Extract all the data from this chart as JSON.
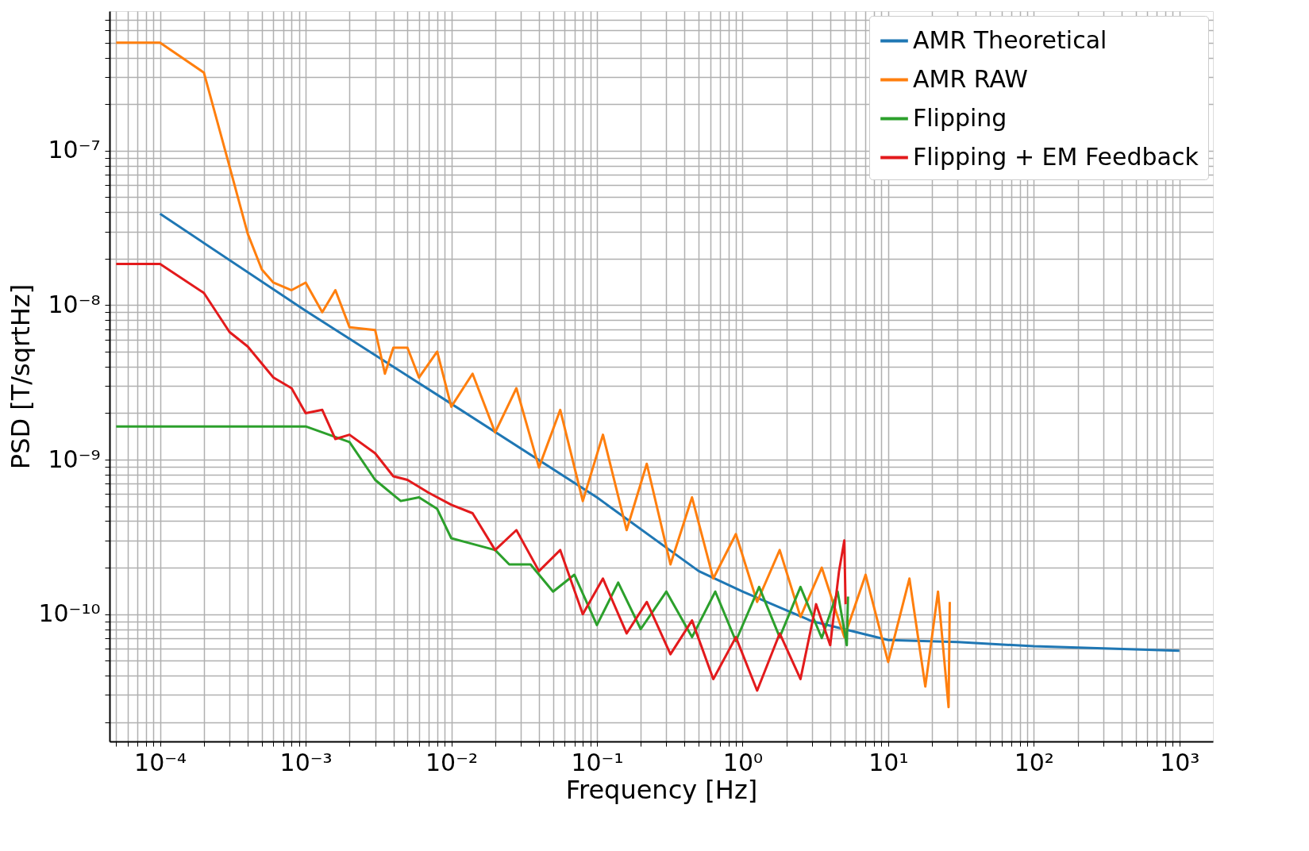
{
  "chart_data": {
    "type": "line",
    "xlabel": "Frequency [Hz]",
    "ylabel": "PSD [T/sqrtHz]",
    "log": "xy",
    "grid": true,
    "legend": "top right",
    "line_style": "solid",
    "marker": "none",
    "xlim": [
      4.5e-05,
      1700
    ],
    "ylim": [
      1.5e-11,
      8e-07
    ],
    "xticks": [
      {
        "value": 5e-05,
        "label": null
      },
      {
        "value": 6e-05,
        "label": null
      },
      {
        "value": 7e-05,
        "label": null
      },
      {
        "value": 8e-05,
        "label": null
      },
      {
        "value": 9e-05,
        "label": null
      },
      {
        "value": 0.0001,
        "label": "10⁻⁴"
      },
      {
        "value": 0.0002,
        "label": null
      },
      {
        "value": 0.0003,
        "label": null
      },
      {
        "value": 0.0004,
        "label": null
      },
      {
        "value": 0.0005,
        "label": null
      },
      {
        "value": 0.0006,
        "label": null
      },
      {
        "value": 0.0007,
        "label": null
      },
      {
        "value": 0.0008,
        "label": null
      },
      {
        "value": 0.0009,
        "label": null
      },
      {
        "value": 0.001,
        "label": "10⁻³"
      },
      {
        "value": 0.002,
        "label": null
      },
      {
        "value": 0.003,
        "label": null
      },
      {
        "value": 0.004,
        "label": null
      },
      {
        "value": 0.005,
        "label": null
      },
      {
        "value": 0.006,
        "label": null
      },
      {
        "value": 0.007,
        "label": null
      },
      {
        "value": 0.008,
        "label": null
      },
      {
        "value": 0.009,
        "label": null
      },
      {
        "value": 0.01,
        "label": "10⁻²"
      },
      {
        "value": 0.02,
        "label": null
      },
      {
        "value": 0.03,
        "label": null
      },
      {
        "value": 0.04,
        "label": null
      },
      {
        "value": 0.05,
        "label": null
      },
      {
        "value": 0.06,
        "label": null
      },
      {
        "value": 0.07,
        "label": null
      },
      {
        "value": 0.08,
        "label": null
      },
      {
        "value": 0.09,
        "label": null
      },
      {
        "value": 0.1,
        "label": "10⁻¹"
      },
      {
        "value": 0.2,
        "label": null
      },
      {
        "value": 0.3,
        "label": null
      },
      {
        "value": 0.4,
        "label": null
      },
      {
        "value": 0.5,
        "label": null
      },
      {
        "value": 0.6,
        "label": null
      },
      {
        "value": 0.7,
        "label": null
      },
      {
        "value": 0.8,
        "label": null
      },
      {
        "value": 0.9,
        "label": null
      },
      {
        "value": 1,
        "label": "10⁰"
      },
      {
        "value": 2,
        "label": null
      },
      {
        "value": 3,
        "label": null
      },
      {
        "value": 4,
        "label": null
      },
      {
        "value": 5,
        "label": null
      },
      {
        "value": 6,
        "label": null
      },
      {
        "value": 7,
        "label": null
      },
      {
        "value": 8,
        "label": null
      },
      {
        "value": 9,
        "label": null
      },
      {
        "value": 10,
        "label": "10¹"
      },
      {
        "value": 20,
        "label": null
      },
      {
        "value": 30,
        "label": null
      },
      {
        "value": 40,
        "label": null
      },
      {
        "value": 50,
        "label": null
      },
      {
        "value": 60,
        "label": null
      },
      {
        "value": 70,
        "label": null
      },
      {
        "value": 80,
        "label": null
      },
      {
        "value": 90,
        "label": null
      },
      {
        "value": 100,
        "label": "10²"
      },
      {
        "value": 200,
        "label": null
      },
      {
        "value": 300,
        "label": null
      },
      {
        "value": 400,
        "label": null
      },
      {
        "value": 500,
        "label": null
      },
      {
        "value": 600,
        "label": null
      },
      {
        "value": 700,
        "label": null
      },
      {
        "value": 800,
        "label": null
      },
      {
        "value": 900,
        "label": null
      },
      {
        "value": 1000,
        "label": "10³"
      }
    ],
    "yticks": [
      {
        "value": 2e-11,
        "label": null
      },
      {
        "value": 3e-11,
        "label": null
      },
      {
        "value": 4e-11,
        "label": null
      },
      {
        "value": 5e-11,
        "label": null
      },
      {
        "value": 6e-11,
        "label": null
      },
      {
        "value": 7e-11,
        "label": null
      },
      {
        "value": 8e-11,
        "label": null
      },
      {
        "value": 9e-11,
        "label": null
      },
      {
        "value": 1e-10,
        "label": "10⁻¹⁰"
      },
      {
        "value": 2e-10,
        "label": null
      },
      {
        "value": 3e-10,
        "label": null
      },
      {
        "value": 4e-10,
        "label": null
      },
      {
        "value": 5e-10,
        "label": null
      },
      {
        "value": 6e-10,
        "label": null
      },
      {
        "value": 7e-10,
        "label": null
      },
      {
        "value": 8e-10,
        "label": null
      },
      {
        "value": 9e-10,
        "label": null
      },
      {
        "value": 1e-09,
        "label": "10⁻⁹"
      },
      {
        "value": 2e-09,
        "label": null
      },
      {
        "value": 3e-09,
        "label": null
      },
      {
        "value": 4e-09,
        "label": null
      },
      {
        "value": 5e-09,
        "label": null
      },
      {
        "value": 6e-09,
        "label": null
      },
      {
        "value": 7e-09,
        "label": null
      },
      {
        "value": 8e-09,
        "label": null
      },
      {
        "value": 9e-09,
        "label": null
      },
      {
        "value": 1e-08,
        "label": "10⁻⁸"
      },
      {
        "value": 2e-08,
        "label": null
      },
      {
        "value": 3e-08,
        "label": null
      },
      {
        "value": 4e-08,
        "label": null
      },
      {
        "value": 5e-08,
        "label": null
      },
      {
        "value": 6e-08,
        "label": null
      },
      {
        "value": 7e-08,
        "label": null
      },
      {
        "value": 8e-08,
        "label": null
      },
      {
        "value": 9e-08,
        "label": null
      },
      {
        "value": 1e-07,
        "label": "10⁻⁷"
      },
      {
        "value": 2e-07,
        "label": null
      },
      {
        "value": 3e-07,
        "label": null
      },
      {
        "value": 4e-07,
        "label": null
      },
      {
        "value": 5e-07,
        "label": null
      },
      {
        "value": 6e-07,
        "label": null
      },
      {
        "value": 7e-07,
        "label": null
      }
    ],
    "series": [
      {
        "name": "AMR Theoretical",
        "color": "#1f77b4",
        "x": [
          0.0001,
          0.001,
          0.01,
          0.1,
          0.5,
          1,
          3,
          10,
          30,
          100,
          1000
        ],
        "values": [
          3.9e-08,
          9.2e-09,
          2.3e-09,
          5.7e-10,
          1.9e-10,
          1.4e-10,
          9e-11,
          6.8e-11,
          6.6e-11,
          6.2e-11,
          5.8e-11
        ]
      },
      {
        "name": "AMR RAW",
        "color": "#ff7f0e",
        "x": [
          5e-05,
          0.0001,
          0.0002,
          0.0003,
          0.0004,
          0.0005,
          0.0006,
          0.0008,
          0.001,
          0.0013,
          0.0016,
          0.002,
          0.003,
          0.0035,
          0.004,
          0.005,
          0.006,
          0.008,
          0.01,
          0.014,
          0.02,
          0.028,
          0.04,
          0.056,
          0.08,
          0.11,
          0.16,
          0.22,
          0.32,
          0.45,
          0.63,
          0.9,
          1.26,
          1.8,
          2.5,
          3.5,
          5,
          7,
          10,
          14,
          18,
          22,
          26,
          26.5
        ],
        "values": [
          5e-07,
          5e-07,
          3.2e-07,
          7.9e-08,
          2.9e-08,
          1.7e-08,
          1.4e-08,
          1.25e-08,
          1.4e-08,
          9e-09,
          1.25e-08,
          7.2e-09,
          6.9e-09,
          3.6e-09,
          5.3e-09,
          5.3e-09,
          3.4e-09,
          5e-09,
          2.2e-09,
          3.6e-09,
          1.5e-09,
          2.9e-09,
          8.9e-10,
          2.1e-09,
          5.4e-10,
          1.45e-09,
          3.5e-10,
          9.4e-10,
          2.1e-10,
          5.7e-10,
          1.7e-10,
          3.3e-10,
          1.2e-10,
          2.6e-10,
          9.6e-11,
          2e-10,
          7.1e-11,
          1.8e-10,
          4.9e-11,
          1.7e-10,
          3.4e-11,
          1.4e-10,
          2.5e-11,
          1.2e-10
        ]
      },
      {
        "name": "Flipping",
        "color": "#2ca02c",
        "x": [
          5e-05,
          0.001,
          0.002,
          0.003,
          0.0045,
          0.006,
          0.008,
          0.01,
          0.013,
          0.02,
          0.025,
          0.035,
          0.05,
          0.07,
          0.1,
          0.14,
          0.2,
          0.3,
          0.45,
          0.65,
          0.9,
          1.3,
          1.8,
          2.5,
          3.5,
          4.5,
          5.2,
          5.3
        ],
        "values": [
          1.64e-09,
          1.64e-09,
          1.3e-09,
          7.4e-10,
          5.4e-10,
          5.7e-10,
          4.8e-10,
          3.1e-10,
          2.9e-10,
          2.6e-10,
          2.1e-10,
          2.1e-10,
          1.4e-10,
          1.8e-10,
          8.5e-11,
          1.6e-10,
          8e-11,
          1.4e-10,
          7.1e-11,
          1.4e-10,
          6.7e-11,
          1.5e-10,
          7.1e-11,
          1.5e-10,
          7e-11,
          1.4e-10,
          6.3e-11,
          1.3e-10
        ]
      },
      {
        "name": "Flipping + EM Feedback",
        "color": "#e31a1c",
        "x": [
          5e-05,
          0.0001,
          0.0002,
          0.0003,
          0.0004,
          0.0006,
          0.0008,
          0.001,
          0.0013,
          0.0016,
          0.002,
          0.003,
          0.004,
          0.005,
          0.007,
          0.01,
          0.014,
          0.02,
          0.028,
          0.04,
          0.056,
          0.08,
          0.11,
          0.16,
          0.22,
          0.32,
          0.45,
          0.63,
          0.9,
          1.26,
          1.8,
          2.5,
          3.2,
          4,
          4.6,
          5,
          5.1
        ],
        "values": [
          1.85e-08,
          1.85e-08,
          1.2e-08,
          6.7e-09,
          5.4e-09,
          3.4e-09,
          2.9e-09,
          2e-09,
          2.1e-09,
          1.36e-09,
          1.45e-09,
          1.1e-09,
          7.8e-10,
          7.4e-10,
          6.1e-10,
          5.1e-10,
          4.5e-10,
          2.6e-10,
          3.5e-10,
          1.9e-10,
          2.6e-10,
          1e-10,
          1.7e-10,
          7.5e-11,
          1.2e-10,
          5.5e-11,
          9.1e-11,
          3.8e-11,
          7.1e-11,
          3.2e-11,
          7.5e-11,
          3.8e-11,
          1.16e-10,
          6.3e-11,
          1.9e-10,
          3e-10,
          1.16e-10
        ]
      }
    ]
  }
}
